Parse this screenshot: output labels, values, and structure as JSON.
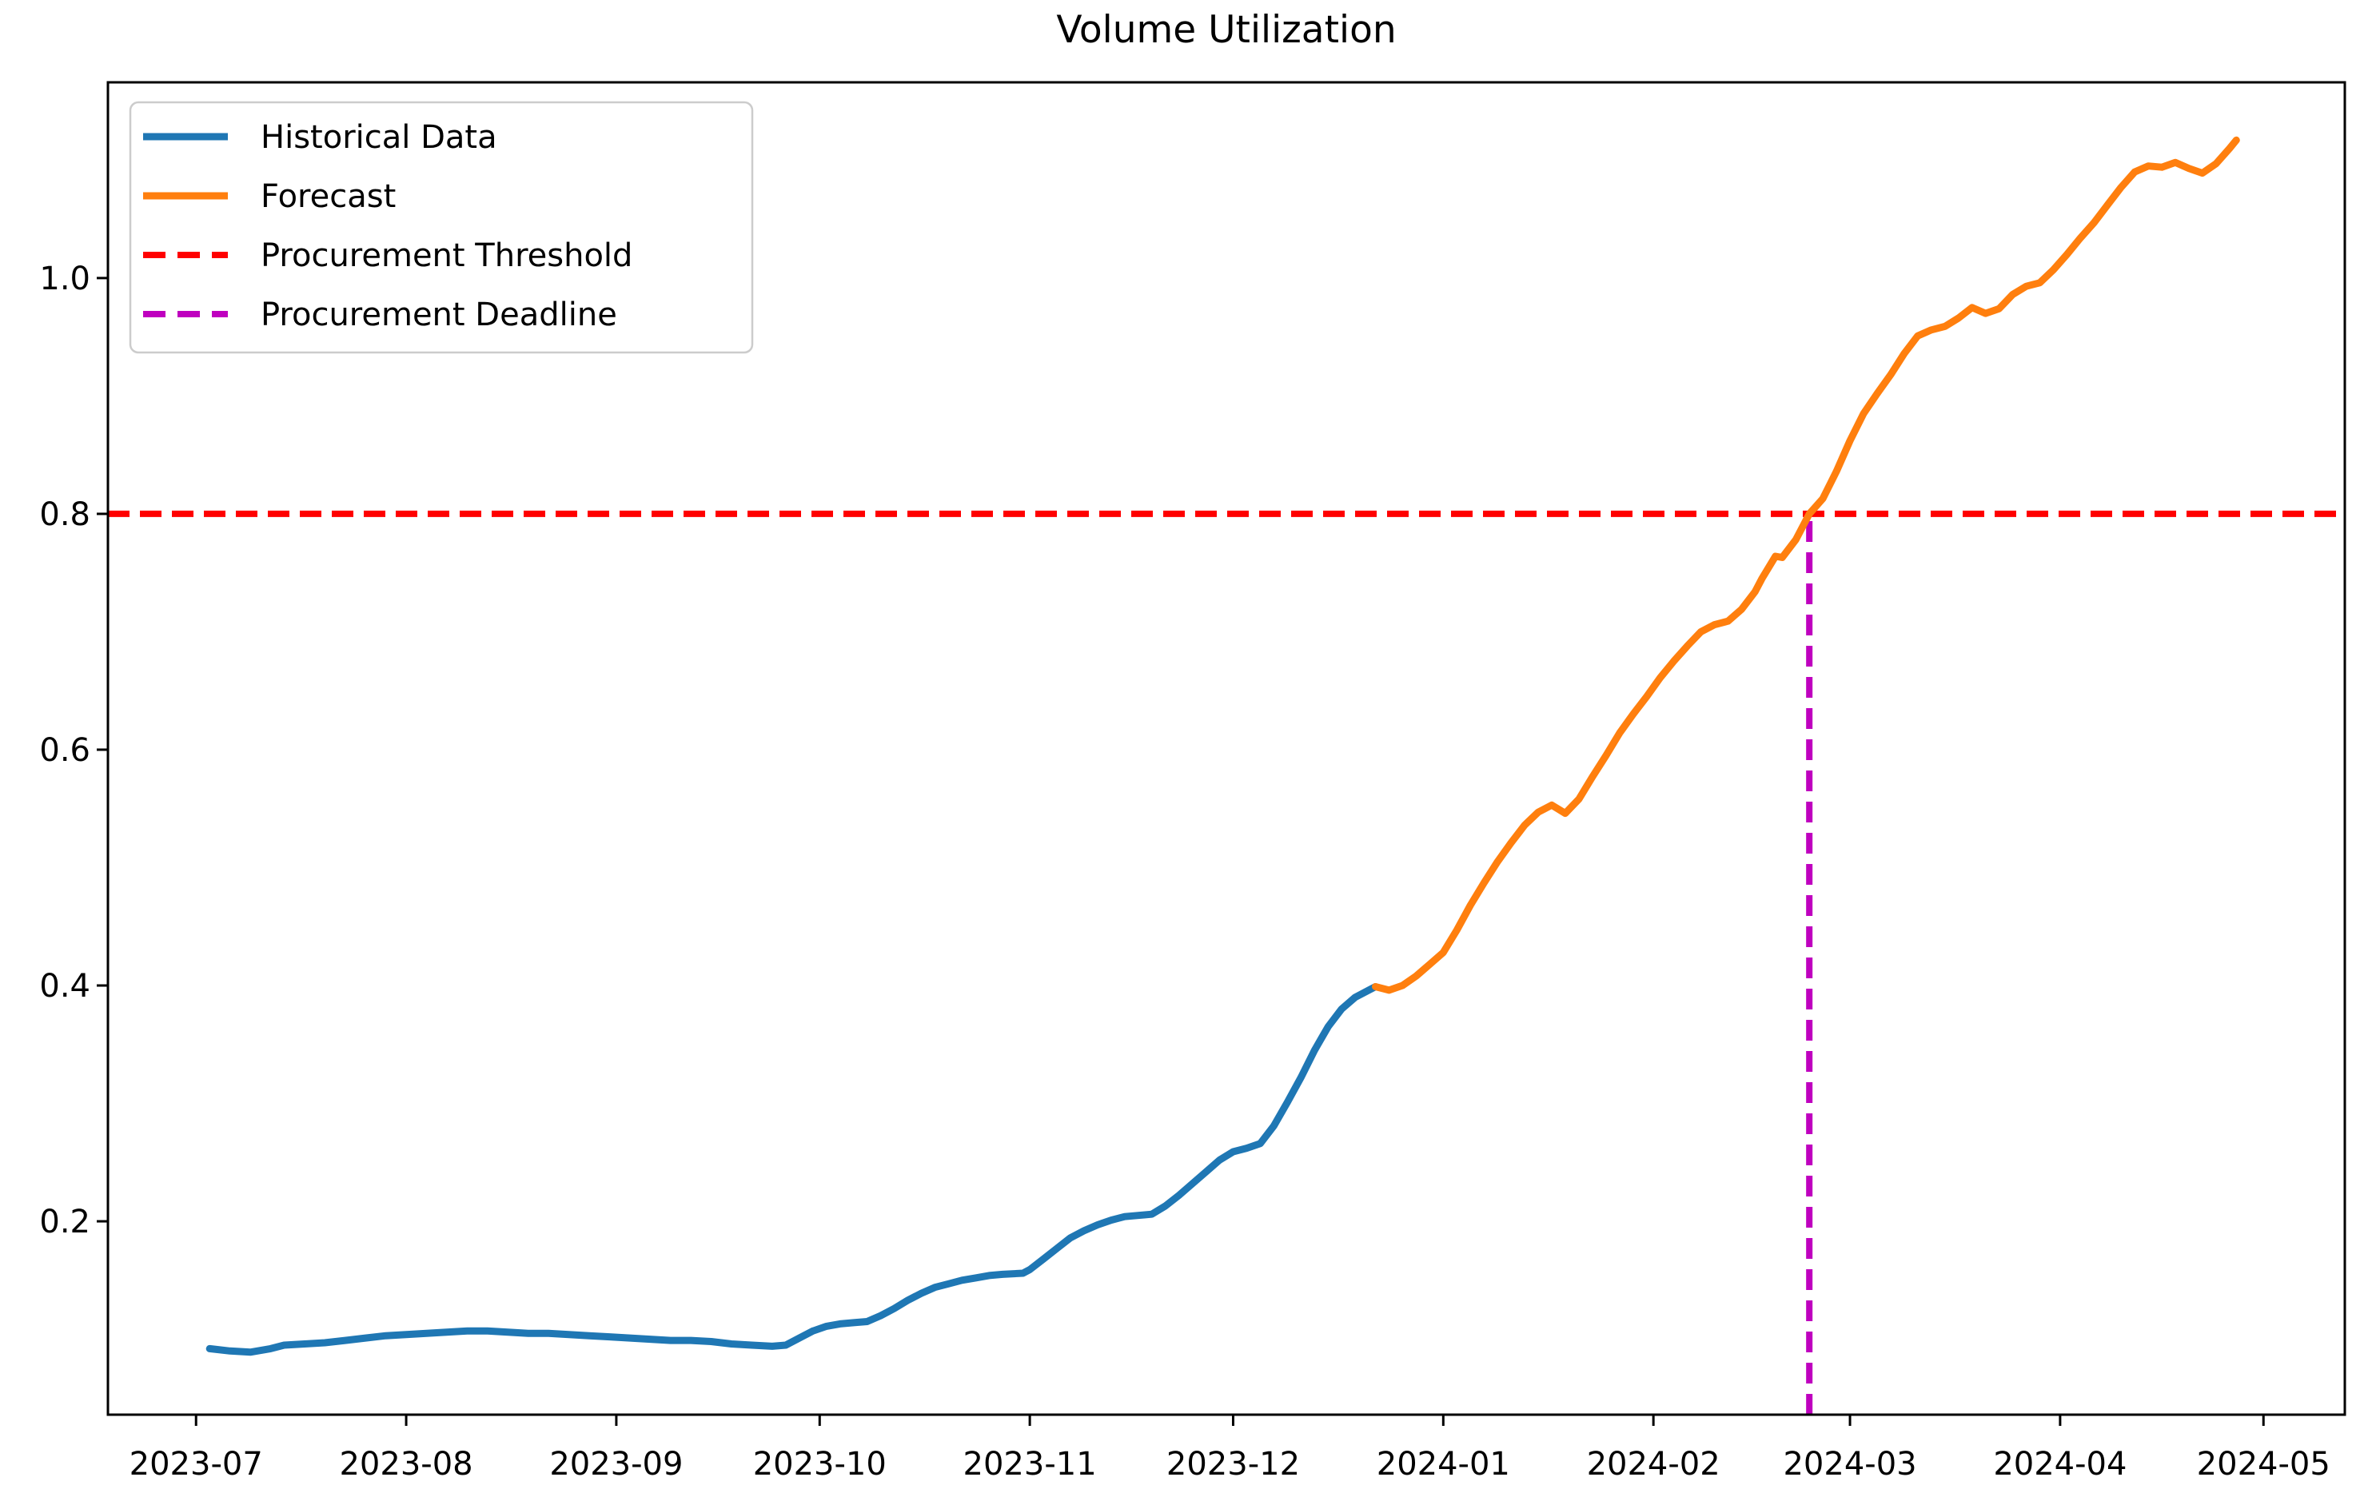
{
  "chart_data": {
    "type": "line",
    "title": "Volume Utilization",
    "xlabel": "",
    "ylabel": "",
    "grid": false,
    "background_color": "#ffffff",
    "frame_color": "#000000",
    "xlim": [
      "2023-06-18",
      "2024-05-13"
    ],
    "ylim": [
      0.036,
      1.166
    ],
    "x_ticks": [
      {
        "date": "2023-07-01",
        "label": "2023-07"
      },
      {
        "date": "2023-08-01",
        "label": "2023-08"
      },
      {
        "date": "2023-09-01",
        "label": "2023-09"
      },
      {
        "date": "2023-10-01",
        "label": "2023-10"
      },
      {
        "date": "2023-11-01",
        "label": "2023-11"
      },
      {
        "date": "2023-12-01",
        "label": "2023-12"
      },
      {
        "date": "2024-01-01",
        "label": "2024-01"
      },
      {
        "date": "2024-02-01",
        "label": "2024-02"
      },
      {
        "date": "2024-03-01",
        "label": "2024-03"
      },
      {
        "date": "2024-04-01",
        "label": "2024-04"
      },
      {
        "date": "2024-05-01",
        "label": "2024-05"
      }
    ],
    "y_ticks": [
      {
        "value": 0.2,
        "label": "0.2"
      },
      {
        "value": 0.4,
        "label": "0.4"
      },
      {
        "value": 0.6,
        "label": "0.6"
      },
      {
        "value": 0.8,
        "label": "0.8"
      },
      {
        "value": 1.0,
        "label": "1.0"
      }
    ],
    "legend": {
      "position": "upper-left",
      "entries": [
        {
          "label": "Historical Data",
          "color": "#1f77b4",
          "dashed": false
        },
        {
          "label": "Forecast",
          "color": "#ff7f0e",
          "dashed": false
        },
        {
          "label": "Procurement Threshold",
          "color": "#ff0000",
          "dashed": true
        },
        {
          "label": "Procurement Deadline",
          "color": "#bf00bf",
          "dashed": true
        }
      ]
    },
    "threshold": {
      "label": "Procurement Threshold",
      "value": 0.8,
      "color": "#ff0000",
      "style": "dashed"
    },
    "deadline": {
      "label": "Procurement Deadline",
      "date": "2024-02-24",
      "color": "#bf00bf",
      "style": "dashed"
    },
    "series": [
      {
        "name": "Historical Data",
        "color": "#1f77b4",
        "style": "solid",
        "points": [
          [
            "2023-07-03",
            0.092
          ],
          [
            "2023-07-06",
            0.09
          ],
          [
            "2023-07-09",
            0.089
          ],
          [
            "2023-07-12",
            0.092
          ],
          [
            "2023-07-14",
            0.095
          ],
          [
            "2023-07-17",
            0.096
          ],
          [
            "2023-07-20",
            0.097
          ],
          [
            "2023-07-23",
            0.099
          ],
          [
            "2023-07-26",
            0.101
          ],
          [
            "2023-07-29",
            0.103
          ],
          [
            "2023-08-01",
            0.104
          ],
          [
            "2023-08-04",
            0.105
          ],
          [
            "2023-08-07",
            0.106
          ],
          [
            "2023-08-10",
            0.107
          ],
          [
            "2023-08-13",
            0.107
          ],
          [
            "2023-08-16",
            0.106
          ],
          [
            "2023-08-19",
            0.105
          ],
          [
            "2023-08-22",
            0.105
          ],
          [
            "2023-08-25",
            0.104
          ],
          [
            "2023-08-28",
            0.103
          ],
          [
            "2023-08-31",
            0.102
          ],
          [
            "2023-09-03",
            0.101
          ],
          [
            "2023-09-06",
            0.1
          ],
          [
            "2023-09-09",
            0.099
          ],
          [
            "2023-09-12",
            0.099
          ],
          [
            "2023-09-15",
            0.098
          ],
          [
            "2023-09-18",
            0.096
          ],
          [
            "2023-09-21",
            0.095
          ],
          [
            "2023-09-24",
            0.094
          ],
          [
            "2023-09-26",
            0.095
          ],
          [
            "2023-09-28",
            0.101
          ],
          [
            "2023-09-30",
            0.107
          ],
          [
            "2023-10-02",
            0.111
          ],
          [
            "2023-10-04",
            0.113
          ],
          [
            "2023-10-06",
            0.114
          ],
          [
            "2023-10-08",
            0.115
          ],
          [
            "2023-10-10",
            0.12
          ],
          [
            "2023-10-12",
            0.126
          ],
          [
            "2023-10-14",
            0.133
          ],
          [
            "2023-10-16",
            0.139
          ],
          [
            "2023-10-18",
            0.144
          ],
          [
            "2023-10-20",
            0.147
          ],
          [
            "2023-10-22",
            0.15
          ],
          [
            "2023-10-24",
            0.152
          ],
          [
            "2023-10-26",
            0.154
          ],
          [
            "2023-10-28",
            0.155
          ],
          [
            "2023-10-31",
            0.156
          ],
          [
            "2023-11-01",
            0.159
          ],
          [
            "2023-11-03",
            0.168
          ],
          [
            "2023-11-05",
            0.177
          ],
          [
            "2023-11-07",
            0.186
          ],
          [
            "2023-11-09",
            0.192
          ],
          [
            "2023-11-11",
            0.197
          ],
          [
            "2023-11-13",
            0.201
          ],
          [
            "2023-11-15",
            0.204
          ],
          [
            "2023-11-17",
            0.205
          ],
          [
            "2023-11-19",
            0.206
          ],
          [
            "2023-11-21",
            0.213
          ],
          [
            "2023-11-23",
            0.222
          ],
          [
            "2023-11-25",
            0.232
          ],
          [
            "2023-11-27",
            0.242
          ],
          [
            "2023-11-29",
            0.252
          ],
          [
            "2023-12-01",
            0.259
          ],
          [
            "2023-12-03",
            0.262
          ],
          [
            "2023-12-05",
            0.266
          ],
          [
            "2023-12-07",
            0.281
          ],
          [
            "2023-12-09",
            0.301
          ],
          [
            "2023-12-11",
            0.322
          ],
          [
            "2023-12-13",
            0.345
          ],
          [
            "2023-12-15",
            0.365
          ],
          [
            "2023-12-17",
            0.38
          ],
          [
            "2023-12-19",
            0.39
          ],
          [
            "2023-12-21",
            0.396
          ],
          [
            "2023-12-22",
            0.399
          ]
        ]
      },
      {
        "name": "Forecast",
        "color": "#ff7f0e",
        "style": "solid",
        "points": [
          [
            "2023-12-22",
            0.399
          ],
          [
            "2023-12-24",
            0.396
          ],
          [
            "2023-12-26",
            0.4
          ],
          [
            "2023-12-28",
            0.408
          ],
          [
            "2023-12-30",
            0.418
          ],
          [
            "2024-01-01",
            0.428
          ],
          [
            "2024-01-03",
            0.447
          ],
          [
            "2024-01-05",
            0.468
          ],
          [
            "2024-01-07",
            0.487
          ],
          [
            "2024-01-09",
            0.505
          ],
          [
            "2024-01-11",
            0.521
          ],
          [
            "2024-01-13",
            0.536
          ],
          [
            "2024-01-15",
            0.547
          ],
          [
            "2024-01-17",
            0.553
          ],
          [
            "2024-01-19",
            0.546
          ],
          [
            "2024-01-21",
            0.558
          ],
          [
            "2024-01-23",
            0.577
          ],
          [
            "2024-01-25",
            0.595
          ],
          [
            "2024-01-27",
            0.614
          ],
          [
            "2024-01-29",
            0.63
          ],
          [
            "2024-01-31",
            0.645
          ],
          [
            "2024-02-02",
            0.661
          ],
          [
            "2024-02-04",
            0.675
          ],
          [
            "2024-02-06",
            0.688
          ],
          [
            "2024-02-08",
            0.7
          ],
          [
            "2024-02-10",
            0.706
          ],
          [
            "2024-02-12",
            0.709
          ],
          [
            "2024-02-14",
            0.719
          ],
          [
            "2024-02-16",
            0.734
          ],
          [
            "2024-02-17",
            0.745
          ],
          [
            "2024-02-19",
            0.764
          ],
          [
            "2024-02-20",
            0.763
          ],
          [
            "2024-02-22",
            0.778
          ],
          [
            "2024-02-24",
            0.8
          ],
          [
            "2024-02-26",
            0.813
          ],
          [
            "2024-02-28",
            0.836
          ],
          [
            "2024-03-01",
            0.862
          ],
          [
            "2024-03-03",
            0.885
          ],
          [
            "2024-03-05",
            0.902
          ],
          [
            "2024-03-07",
            0.918
          ],
          [
            "2024-03-09",
            0.936
          ],
          [
            "2024-03-11",
            0.951
          ],
          [
            "2024-03-13",
            0.956
          ],
          [
            "2024-03-15",
            0.959
          ],
          [
            "2024-03-17",
            0.966
          ],
          [
            "2024-03-19",
            0.975
          ],
          [
            "2024-03-21",
            0.97
          ],
          [
            "2024-03-23",
            0.974
          ],
          [
            "2024-03-25",
            0.986
          ],
          [
            "2024-03-27",
            0.993
          ],
          [
            "2024-03-29",
            0.996
          ],
          [
            "2024-03-31",
            1.007
          ],
          [
            "2024-04-02",
            1.02
          ],
          [
            "2024-04-04",
            1.034
          ],
          [
            "2024-04-06",
            1.047
          ],
          [
            "2024-04-08",
            1.062
          ],
          [
            "2024-04-10",
            1.077
          ],
          [
            "2024-04-12",
            1.09
          ],
          [
            "2024-04-14",
            1.095
          ],
          [
            "2024-04-16",
            1.094
          ],
          [
            "2024-04-18",
            1.098
          ],
          [
            "2024-04-20",
            1.093
          ],
          [
            "2024-04-22",
            1.089
          ],
          [
            "2024-04-24",
            1.097
          ],
          [
            "2024-04-26",
            1.11
          ],
          [
            "2024-04-27",
            1.117
          ]
        ]
      }
    ]
  }
}
